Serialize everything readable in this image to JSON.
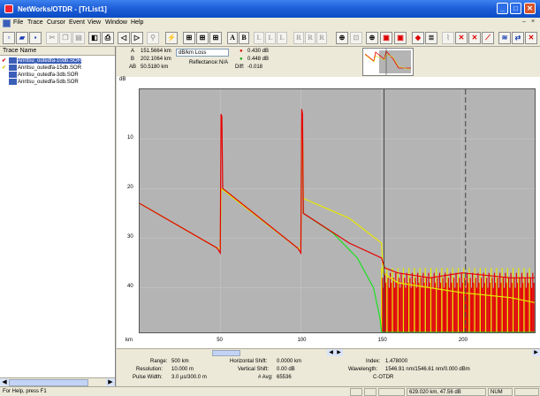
{
  "window": {
    "title": "NetWorks/OTDR - [TrList1]",
    "menu": [
      "File",
      "Trace",
      "Cursor",
      "Event",
      "View",
      "Window",
      "Help"
    ]
  },
  "toolbar": {
    "text_buttons": [
      "A",
      "B",
      "L",
      "L",
      "L",
      "R",
      "R",
      "R"
    ]
  },
  "traces": {
    "header": "Trace Name",
    "items": [
      {
        "check": "✔",
        "check_color": "#d00000",
        "name": "Anritsu_outedfa-10db.SOR",
        "selected": true
      },
      {
        "check": "✔",
        "check_color": "#d6c400",
        "name": "Anritsu_outedfa-15db.SOR",
        "selected": false
      },
      {
        "check": "",
        "check_color": "#000000",
        "name": "Anritsu_outedfa-3db.SOR",
        "selected": false
      },
      {
        "check": "",
        "check_color": "#000000",
        "name": "Anritsu_outedfa-5db.SOR",
        "selected": false
      }
    ]
  },
  "cursors": {
    "a_label": "A",
    "a_value": "151.5664 km",
    "b_label": "B",
    "b_value": "202.1064 km",
    "ab_label": "AB",
    "ab_value": "50.5180 km",
    "loss_mode": "dB/km Loss",
    "reflectance_label": "Reflectance:",
    "reflectance_value": "N/A",
    "loss_a_value": "0.430 dB",
    "loss_b_value": "0.448 dB",
    "diff_label": "Diff:",
    "diff_value": "-0.018"
  },
  "chart_data": {
    "type": "line",
    "y_unit": "dB",
    "x_unit": "km",
    "xlim": [
      0,
      245
    ],
    "ylim": [
      0,
      49
    ],
    "x_ticks": [
      50,
      100,
      150,
      200
    ],
    "y_ticks": [
      10,
      20,
      30,
      40
    ],
    "background": "#b4b4b4",
    "grid": true,
    "series": [
      {
        "color": "#e60000",
        "points": [
          [
            0,
            23
          ],
          [
            48,
            32
          ],
          [
            50,
            33
          ],
          [
            50.5,
            5
          ],
          [
            51,
            5.5
          ],
          [
            51.5,
            20
          ],
          [
            98,
            32
          ],
          [
            100,
            33
          ],
          [
            100.5,
            4
          ],
          [
            101,
            5
          ],
          [
            101.5,
            25
          ],
          [
            130,
            31
          ],
          [
            150,
            34
          ],
          [
            152,
            36
          ],
          [
            160,
            37
          ],
          [
            180,
            38
          ],
          [
            200,
            37
          ],
          [
            230,
            38
          ],
          [
            245,
            38
          ]
        ]
      },
      {
        "color": "#e8e800",
        "points": [
          [
            0,
            23
          ],
          [
            48,
            32
          ],
          [
            50,
            32
          ],
          [
            50.5,
            20
          ],
          [
            98,
            32
          ],
          [
            100,
            32
          ],
          [
            100.5,
            7
          ],
          [
            101,
            8
          ],
          [
            101.5,
            22
          ],
          [
            130,
            26
          ],
          [
            150,
            31
          ],
          [
            151,
            37
          ],
          [
            160,
            39
          ],
          [
            180,
            40
          ],
          [
            200,
            41
          ],
          [
            230,
            42
          ],
          [
            245,
            43
          ]
        ]
      },
      {
        "color": "#20e020",
        "points": [
          [
            0,
            23
          ],
          [
            48,
            32
          ],
          [
            50,
            32
          ],
          [
            50.5,
            20
          ],
          [
            98,
            32
          ],
          [
            100,
            32
          ],
          [
            100.5,
            7
          ],
          [
            101,
            8
          ],
          [
            101.5,
            25
          ],
          [
            120,
            29
          ],
          [
            135,
            34
          ],
          [
            145,
            40
          ],
          [
            149,
            46
          ],
          [
            150,
            49
          ],
          [
            245,
            49
          ]
        ]
      }
    ],
    "markers": [
      {
        "label": "A",
        "x": 151.5664,
        "color": "#444444"
      },
      {
        "label": "B",
        "x": 202.1064,
        "color": "#444444"
      }
    ]
  },
  "stats": {
    "range_label": "Range:",
    "range_value": "500 km",
    "resolution_label": "Resolution:",
    "resolution_value": "10.000 m",
    "pulse_label": "Pulse Width:",
    "pulse_value": "3.0 µs/300.0 m",
    "hshift_label": "Horizontal Shift:",
    "hshift_value": "0.0000 km",
    "vshift_label": "Vertical Shift:",
    "vshift_value": "0.00 dB",
    "avg_label": "# Avg:",
    "avg_value": "65536",
    "index_label": "Index:",
    "index_value": "1.478000",
    "wavelength_label": "Wavelength:",
    "wavelength_value": "1546.91 nm/1546.61 nm/0.000 dBm",
    "mode_value": "C-OTDR"
  },
  "status": {
    "message": "For Help, press F1",
    "position": "629.020 km, 47.56 dB",
    "num": "NUM"
  }
}
